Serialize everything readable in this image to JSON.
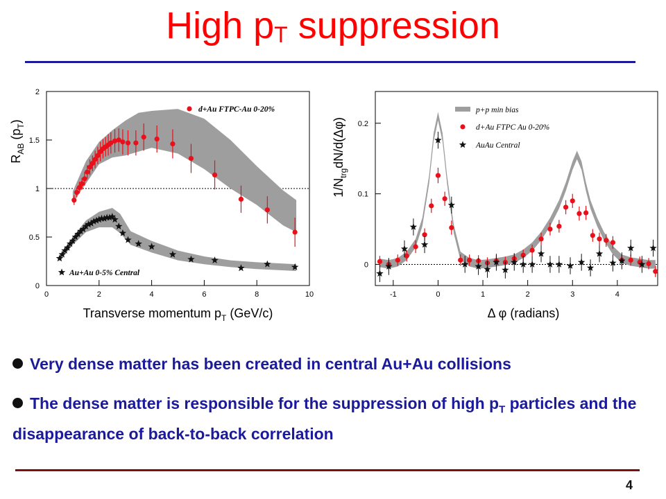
{
  "slide": {
    "title_main": "High p",
    "title_sub": "T",
    "title_rest": " suppression",
    "bullet1": "Very dense matter has been created in central Au+Au collisions",
    "bullet2_a": "The dense matter is responsible for the suppression of high p",
    "bullet2_sub": "T",
    "bullet2_b": " particles and the disappearance of back-to-back correlation",
    "page_number": "4"
  },
  "colors": {
    "title": "#ff0000",
    "text": "#1a1a9a",
    "rule_top": "#1a1a9a",
    "rule_bottom": "#7a1010",
    "red_series": "#e8101a",
    "band": "#9e9e9e"
  },
  "chart_data": [
    {
      "type": "scatter",
      "ylabel_main": "R",
      "ylabel_sub": "AB",
      "ylabel_rest": " (p",
      "ylabel_sub2": "T",
      "ylabel_end": ")",
      "xlabel_main": "Transverse momentum p",
      "xlabel_sub": "T",
      "xlabel_rest": " (GeV/c)",
      "xlim": [
        0,
        10
      ],
      "ylim": [
        0,
        2
      ],
      "xticks": [
        0,
        2,
        4,
        6,
        8,
        10
      ],
      "yticks": [
        0,
        0.5,
        1,
        1.5,
        2
      ],
      "reference_line": 1,
      "legend": [
        {
          "label": "d+Au FTPC-Au 0-20%",
          "marker": "circle",
          "color": "#e8101a",
          "placement": "top-right"
        },
        {
          "label": "Au+Au 0-5% Central",
          "marker": "star",
          "color": "#111111",
          "placement": "bottom-left"
        }
      ],
      "series": [
        {
          "name": "d+Au FTPC-Au 0-20%",
          "marker": "circle",
          "x": [
            1.05,
            1.15,
            1.25,
            1.35,
            1.45,
            1.55,
            1.65,
            1.75,
            1.85,
            1.95,
            2.05,
            2.15,
            2.25,
            2.35,
            2.45,
            2.6,
            2.75,
            2.9,
            3.1,
            3.4,
            3.7,
            4.2,
            4.8,
            5.5,
            6.4,
            7.4,
            8.4,
            9.45
          ],
          "y": [
            0.88,
            0.96,
            1.01,
            1.05,
            1.1,
            1.17,
            1.22,
            1.26,
            1.3,
            1.34,
            1.38,
            1.41,
            1.43,
            1.45,
            1.47,
            1.49,
            1.5,
            1.48,
            1.47,
            1.47,
            1.53,
            1.51,
            1.46,
            1.31,
            1.14,
            0.89,
            0.78,
            0.55
          ],
          "err": [
            0.05,
            0.05,
            0.06,
            0.06,
            0.07,
            0.07,
            0.08,
            0.08,
            0.09,
            0.09,
            0.1,
            0.1,
            0.1,
            0.11,
            0.11,
            0.12,
            0.12,
            0.13,
            0.13,
            0.13,
            0.14,
            0.14,
            0.15,
            0.15,
            0.15,
            0.14,
            0.14,
            0.15
          ],
          "band_x": [
            1.0,
            1.5,
            2.0,
            2.5,
            3.0,
            3.5,
            4.0,
            5.0,
            6.0,
            7.0,
            8.0,
            9.0,
            9.5
          ],
          "band_low": [
            0.85,
            1.05,
            1.25,
            1.32,
            1.34,
            1.38,
            1.42,
            1.36,
            1.2,
            1.0,
            0.83,
            0.62,
            0.55
          ],
          "band_high": [
            0.97,
            1.28,
            1.48,
            1.6,
            1.7,
            1.78,
            1.8,
            1.82,
            1.72,
            1.5,
            1.23,
            0.98,
            0.88
          ]
        },
        {
          "name": "Au+Au 0-5% Central",
          "marker": "star",
          "x": [
            0.5,
            0.6,
            0.7,
            0.8,
            0.9,
            1.0,
            1.1,
            1.2,
            1.3,
            1.4,
            1.5,
            1.6,
            1.7,
            1.8,
            1.9,
            2.0,
            2.1,
            2.2,
            2.3,
            2.4,
            2.5,
            2.6,
            2.75,
            2.9,
            3.1,
            3.5,
            4.0,
            4.8,
            5.5,
            6.4,
            7.4,
            8.4,
            9.45
          ],
          "y": [
            0.28,
            0.32,
            0.36,
            0.39,
            0.43,
            0.46,
            0.5,
            0.53,
            0.56,
            0.58,
            0.61,
            0.63,
            0.64,
            0.66,
            0.67,
            0.68,
            0.69,
            0.69,
            0.7,
            0.7,
            0.71,
            0.68,
            0.61,
            0.54,
            0.47,
            0.43,
            0.4,
            0.32,
            0.27,
            0.26,
            0.18,
            0.22,
            0.19
          ],
          "band_x": [
            0.5,
            1.0,
            1.5,
            2.0,
            2.5,
            2.8,
            3.2,
            4.0,
            5.0,
            6.0,
            7.0,
            8.0,
            9.5
          ],
          "band_low": [
            0.25,
            0.42,
            0.55,
            0.6,
            0.6,
            0.54,
            0.42,
            0.34,
            0.26,
            0.22,
            0.19,
            0.17,
            0.15
          ],
          "band_high": [
            0.31,
            0.5,
            0.67,
            0.76,
            0.8,
            0.74,
            0.56,
            0.46,
            0.36,
            0.3,
            0.26,
            0.24,
            0.22
          ]
        }
      ]
    },
    {
      "type": "scatter",
      "ylabel_a": "1/N",
      "ylabel_sub": "trg",
      "ylabel_b": "dN/d(Δφ)",
      "xlabel": "Δ φ (radians)",
      "xlim": [
        -1.4,
        4.9
      ],
      "ylim": [
        -0.03,
        0.245
      ],
      "xticks": [
        -1,
        0,
        1,
        2,
        3,
        4
      ],
      "yticks": [
        0,
        0.1,
        0.2
      ],
      "reference_line": 0,
      "legend": [
        {
          "label": "p+p min bias",
          "marker": "band",
          "color": "#9e9e9e",
          "placement": "top-right"
        },
        {
          "label": "d+Au FTPC Au 0-20%",
          "marker": "circle",
          "color": "#e8101a",
          "placement": "top-right"
        },
        {
          "label": "AuAu Central",
          "marker": "star",
          "color": "#111111",
          "placement": "top-right"
        }
      ],
      "series": [
        {
          "name": "p+p min bias",
          "marker": "band",
          "x": [
            -1.3,
            -1.1,
            -0.9,
            -0.7,
            -0.5,
            -0.35,
            -0.2,
            -0.1,
            0.0,
            0.1,
            0.2,
            0.35,
            0.5,
            0.7,
            0.9,
            1.1,
            1.3,
            1.5,
            1.7,
            1.9,
            2.1,
            2.3,
            2.5,
            2.7,
            2.85,
            3.0,
            3.1,
            3.2,
            3.3,
            3.4,
            3.55,
            3.7,
            3.9,
            4.1,
            4.3,
            4.5,
            4.7,
            4.85
          ],
          "y": [
            0.002,
            0.0,
            0.003,
            0.012,
            0.03,
            0.06,
            0.12,
            0.18,
            0.21,
            0.18,
            0.12,
            0.05,
            0.012,
            0.003,
            0.0,
            0.001,
            0.003,
            0.005,
            0.008,
            0.015,
            0.025,
            0.04,
            0.06,
            0.085,
            0.11,
            0.14,
            0.155,
            0.14,
            0.11,
            0.085,
            0.06,
            0.04,
            0.02,
            0.008,
            0.004,
            0.002,
            0.0,
            0.0
          ],
          "halfwidth": 0.006
        },
        {
          "name": "d+Au FTPC Au 0-20%",
          "marker": "circle",
          "x": [
            -1.3,
            -1.1,
            -0.9,
            -0.7,
            -0.5,
            -0.3,
            -0.15,
            0.0,
            0.15,
            0.3,
            0.5,
            0.7,
            0.9,
            1.1,
            1.3,
            1.5,
            1.7,
            1.9,
            2.1,
            2.3,
            2.5,
            2.7,
            2.85,
            3.0,
            3.15,
            3.3,
            3.45,
            3.6,
            3.75,
            3.9,
            4.1,
            4.3,
            4.5,
            4.7,
            4.85
          ],
          "y": [
            0.004,
            0.0,
            0.006,
            0.012,
            0.025,
            0.042,
            0.083,
            0.126,
            0.093,
            0.052,
            0.006,
            0.006,
            0.005,
            0.002,
            0.005,
            0.003,
            0.008,
            0.013,
            0.02,
            0.036,
            0.05,
            0.054,
            0.081,
            0.09,
            0.072,
            0.073,
            0.041,
            0.036,
            0.034,
            0.031,
            0.006,
            0.006,
            0.003,
            0.001,
            -0.01
          ],
          "err": [
            0.008,
            0.008,
            0.008,
            0.008,
            0.009,
            0.009,
            0.01,
            0.011,
            0.01,
            0.01,
            0.008,
            0.008,
            0.008,
            0.008,
            0.008,
            0.008,
            0.008,
            0.008,
            0.008,
            0.009,
            0.009,
            0.009,
            0.01,
            0.01,
            0.01,
            0.01,
            0.009,
            0.009,
            0.009,
            0.009,
            0.008,
            0.008,
            0.008,
            0.008,
            0.008
          ]
        },
        {
          "name": "AuAu Central",
          "marker": "star",
          "x": [
            -1.3,
            -1.1,
            -0.75,
            -0.55,
            -0.3,
            0.0,
            0.3,
            0.6,
            0.9,
            1.1,
            1.3,
            1.5,
            1.7,
            1.9,
            2.1,
            2.3,
            2.5,
            2.7,
            2.95,
            3.2,
            3.4,
            3.6,
            3.9,
            4.1,
            4.3,
            4.55,
            4.8
          ],
          "y": [
            -0.013,
            -0.003,
            0.022,
            0.053,
            0.028,
            0.176,
            0.084,
            0.0,
            -0.003,
            -0.007,
            0.003,
            -0.008,
            0.003,
            0.0,
            0.0,
            0.015,
            0.0,
            0.0,
            -0.002,
            0.003,
            -0.005,
            0.015,
            0.002,
            0.005,
            0.023,
            0.0,
            0.023
          ],
          "err": [
            0.012,
            0.012,
            0.012,
            0.012,
            0.012,
            0.012,
            0.012,
            0.012,
            0.012,
            0.012,
            0.012,
            0.012,
            0.012,
            0.012,
            0.012,
            0.012,
            0.012,
            0.012,
            0.012,
            0.012,
            0.012,
            0.012,
            0.012,
            0.012,
            0.012,
            0.012,
            0.012
          ]
        }
      ]
    }
  ]
}
